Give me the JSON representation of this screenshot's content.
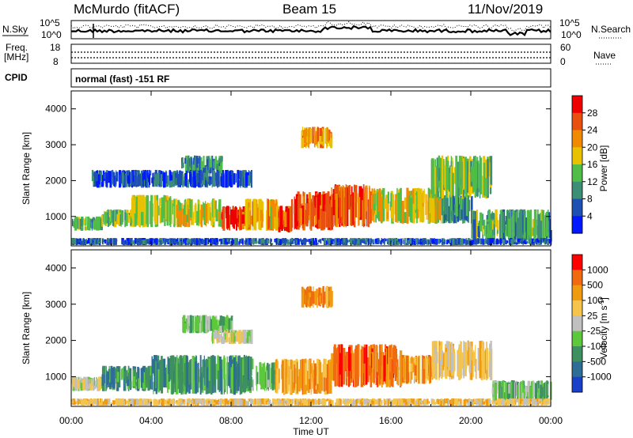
{
  "header": {
    "station": "McMurdo (fitACF)",
    "beam": "Beam 15",
    "date": "11/Nov/2019"
  },
  "strips": {
    "nsky_label": "N.Sky",
    "nsearch_label": "N.Search",
    "noise_ticks": [
      "10^5",
      "10^0"
    ],
    "freq_label_1": "Freq.",
    "freq_label_2": "[MHz]",
    "freq_ticks": [
      "18",
      "8"
    ],
    "nave_label": "Nave",
    "nave_ticks": [
      "60",
      "0"
    ],
    "cpid_label": "CPID",
    "cpid_text": "normal (fast) -151 RF"
  },
  "chart_data": [
    {
      "type": "heatmap",
      "name": "power",
      "ylabel": "Slant Range [km]",
      "xlabel": "",
      "x_ticks": [
        "00:00",
        "04:00",
        "08:00",
        "12:00",
        "16:00",
        "20:00",
        "00:00"
      ],
      "xlim_hours": [
        0,
        24
      ],
      "ylim": [
        180,
        4500
      ],
      "y_ticks": [
        1000,
        2000,
        3000,
        4000
      ],
      "colorbar": {
        "label": "Power [dB]",
        "ticks": [
          "4",
          "8",
          "12",
          "16",
          "20",
          "24",
          "28"
        ],
        "range": [
          0,
          30
        ],
        "colors": [
          "#0018ff",
          "#1e50b4",
          "#3c8f74",
          "#4fbd47",
          "#e8c200",
          "#f08a00",
          "#e85010",
          "#ee0000"
        ]
      },
      "features": [
        {
          "t": [
            0.0,
            1.5
          ],
          "r": [
            600,
            1000
          ],
          "level": 12
        },
        {
          "t": [
            1.5,
            3.0
          ],
          "r": [
            700,
            1200
          ],
          "level": 14
        },
        {
          "t": [
            3.0,
            5.0
          ],
          "r": [
            700,
            1600
          ],
          "level": 16
        },
        {
          "t": [
            5.0,
            7.5
          ],
          "r": [
            700,
            1500
          ],
          "level": 18
        },
        {
          "t": [
            7.5,
            8.7
          ],
          "r": [
            600,
            1300
          ],
          "level": 28
        },
        {
          "t": [
            8.7,
            10.3
          ],
          "r": [
            600,
            1500
          ],
          "level": 20
        },
        {
          "t": [
            10.3,
            11.0
          ],
          "r": [
            550,
            1300
          ],
          "level": 26
        },
        {
          "t": [
            11.0,
            13.0
          ],
          "r": [
            600,
            1700
          ],
          "level": 27
        },
        {
          "t": [
            13.0,
            15.0
          ],
          "r": [
            700,
            1900
          ],
          "level": 26
        },
        {
          "t": [
            15.0,
            18.5
          ],
          "r": [
            800,
            1800
          ],
          "level": 18
        },
        {
          "t": [
            18.5,
            20.0
          ],
          "r": [
            800,
            1600
          ],
          "level": 10
        },
        {
          "t": [
            20.0,
            24.0
          ],
          "r": [
            300,
            1200
          ],
          "level": 12
        },
        {
          "t": [
            11.5,
            13.0
          ],
          "r": [
            2900,
            3500
          ],
          "level": 22
        },
        {
          "t": [
            5.5,
            7.5
          ],
          "r": [
            2200,
            2700
          ],
          "level": 10
        },
        {
          "t": [
            1.0,
            9.0
          ],
          "r": [
            1800,
            2300
          ],
          "level": 6
        },
        {
          "t": [
            18.0,
            21.0
          ],
          "r": [
            1500,
            2700
          ],
          "level": 14
        },
        {
          "t": [
            0.0,
            24.0
          ],
          "r": [
            200,
            400
          ],
          "level": 6
        }
      ]
    },
    {
      "type": "heatmap",
      "name": "velocity",
      "ylabel": "Slant Range [km]",
      "xlabel": "Time UT",
      "x_ticks": [
        "00:00",
        "04:00",
        "08:00",
        "12:00",
        "16:00",
        "20:00",
        "00:00"
      ],
      "xlim_hours": [
        0,
        24
      ],
      "ylim": [
        180,
        4500
      ],
      "y_ticks": [
        1000,
        2000,
        3000,
        4000
      ],
      "colorbar": {
        "label": "Velocity [m s^-1]",
        "ticks": [
          "1000",
          "500",
          "100",
          "25",
          "-25",
          "-100",
          "-500",
          "-1000"
        ],
        "colors": [
          "#1a3fc8",
          "#2e6e96",
          "#3e9060",
          "#5ec83c",
          "#c0c0c0",
          "#f5c44a",
          "#f09a10",
          "#f06a10",
          "#ff0000"
        ]
      },
      "features": [
        {
          "t": [
            0.0,
            1.5
          ],
          "r": [
            600,
            1000
          ],
          "level": 4
        },
        {
          "t": [
            1.5,
            4.0
          ],
          "r": [
            600,
            1300
          ],
          "level": 2
        },
        {
          "t": [
            4.0,
            9.0
          ],
          "r": [
            500,
            1600
          ],
          "level": 2
        },
        {
          "t": [
            9.0,
            10.2
          ],
          "r": [
            600,
            1400
          ],
          "level": 3
        },
        {
          "t": [
            10.2,
            13.0
          ],
          "r": [
            500,
            1500
          ],
          "level": 6
        },
        {
          "t": [
            13.0,
            16.5
          ],
          "r": [
            700,
            1900
          ],
          "level": 7
        },
        {
          "t": [
            16.5,
            18.0
          ],
          "r": [
            800,
            1600
          ],
          "level": 6
        },
        {
          "t": [
            18.0,
            21.0
          ],
          "r": [
            900,
            2000
          ],
          "level": 5
        },
        {
          "t": [
            21.0,
            24.0
          ],
          "r": [
            300,
            900
          ],
          "level": 3
        },
        {
          "t": [
            11.5,
            13.0
          ],
          "r": [
            2900,
            3500
          ],
          "level": 6
        },
        {
          "t": [
            5.5,
            8.0
          ],
          "r": [
            2200,
            2700
          ],
          "level": 3
        },
        {
          "t": [
            7.0,
            9.0
          ],
          "r": [
            1900,
            2300
          ],
          "level": 4
        },
        {
          "t": [
            0.0,
            24.0
          ],
          "r": [
            200,
            400
          ],
          "level": 5
        }
      ]
    }
  ]
}
